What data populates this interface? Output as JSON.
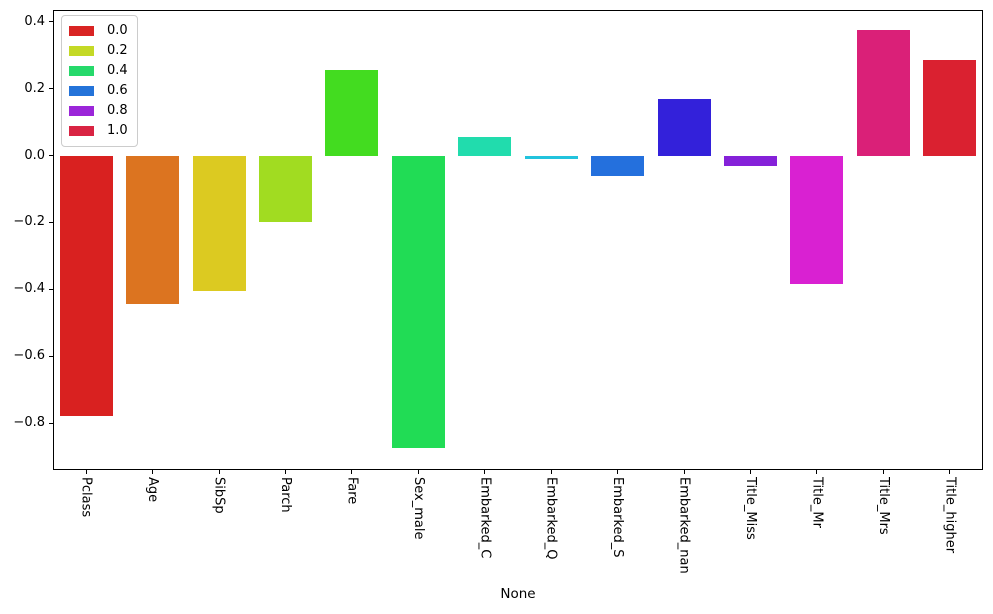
{
  "chart_data": {
    "type": "bar",
    "title": "",
    "xlabel": "None",
    "ylabel": "",
    "categories": [
      "Pclass",
      "Age",
      "SibSp",
      "Parch",
      "Fare",
      "Sex_male",
      "Embarked_C",
      "Embarked_Q",
      "Embarked_S",
      "Embarked_nan",
      "Title_Miss",
      "Title_Mr",
      "Title_Mrs",
      "Title_higher"
    ],
    "values": [
      -0.78,
      -0.445,
      -0.405,
      -0.2,
      0.255,
      -0.875,
      0.055,
      -0.01,
      -0.06,
      0.17,
      -0.03,
      -0.385,
      0.375,
      0.285
    ],
    "bar_colors": [
      "#d92120",
      "#dc7420",
      "#dcca21",
      "#a1dc21",
      "#43dc20",
      "#21dc55",
      "#21dcad",
      "#22c3dd",
      "#2470dd",
      "#3321da",
      "#8521d9",
      "#d921d2",
      "#da2078",
      "#da2130"
    ],
    "ylim": [
      -0.94,
      0.435
    ],
    "yticks": [
      0.4,
      0.2,
      0.0,
      -0.2,
      -0.4,
      -0.6,
      -0.8
    ],
    "ytick_labels": [
      "0.4",
      "0.2",
      "0.0",
      "−0.2",
      "−0.4",
      "−0.6",
      "−0.8"
    ],
    "grid": false,
    "bar_width_fraction": 0.8,
    "legend": {
      "position": "upper-left",
      "entries": [
        {
          "label": "0.0",
          "color": "#d92423"
        },
        {
          "label": "0.2",
          "color": "#c4d926"
        },
        {
          "label": "0.4",
          "color": "#26d96b"
        },
        {
          "label": "0.6",
          "color": "#2473d9"
        },
        {
          "label": "0.8",
          "color": "#9b26d9"
        },
        {
          "label": "1.0",
          "color": "#d92443"
        }
      ]
    }
  }
}
